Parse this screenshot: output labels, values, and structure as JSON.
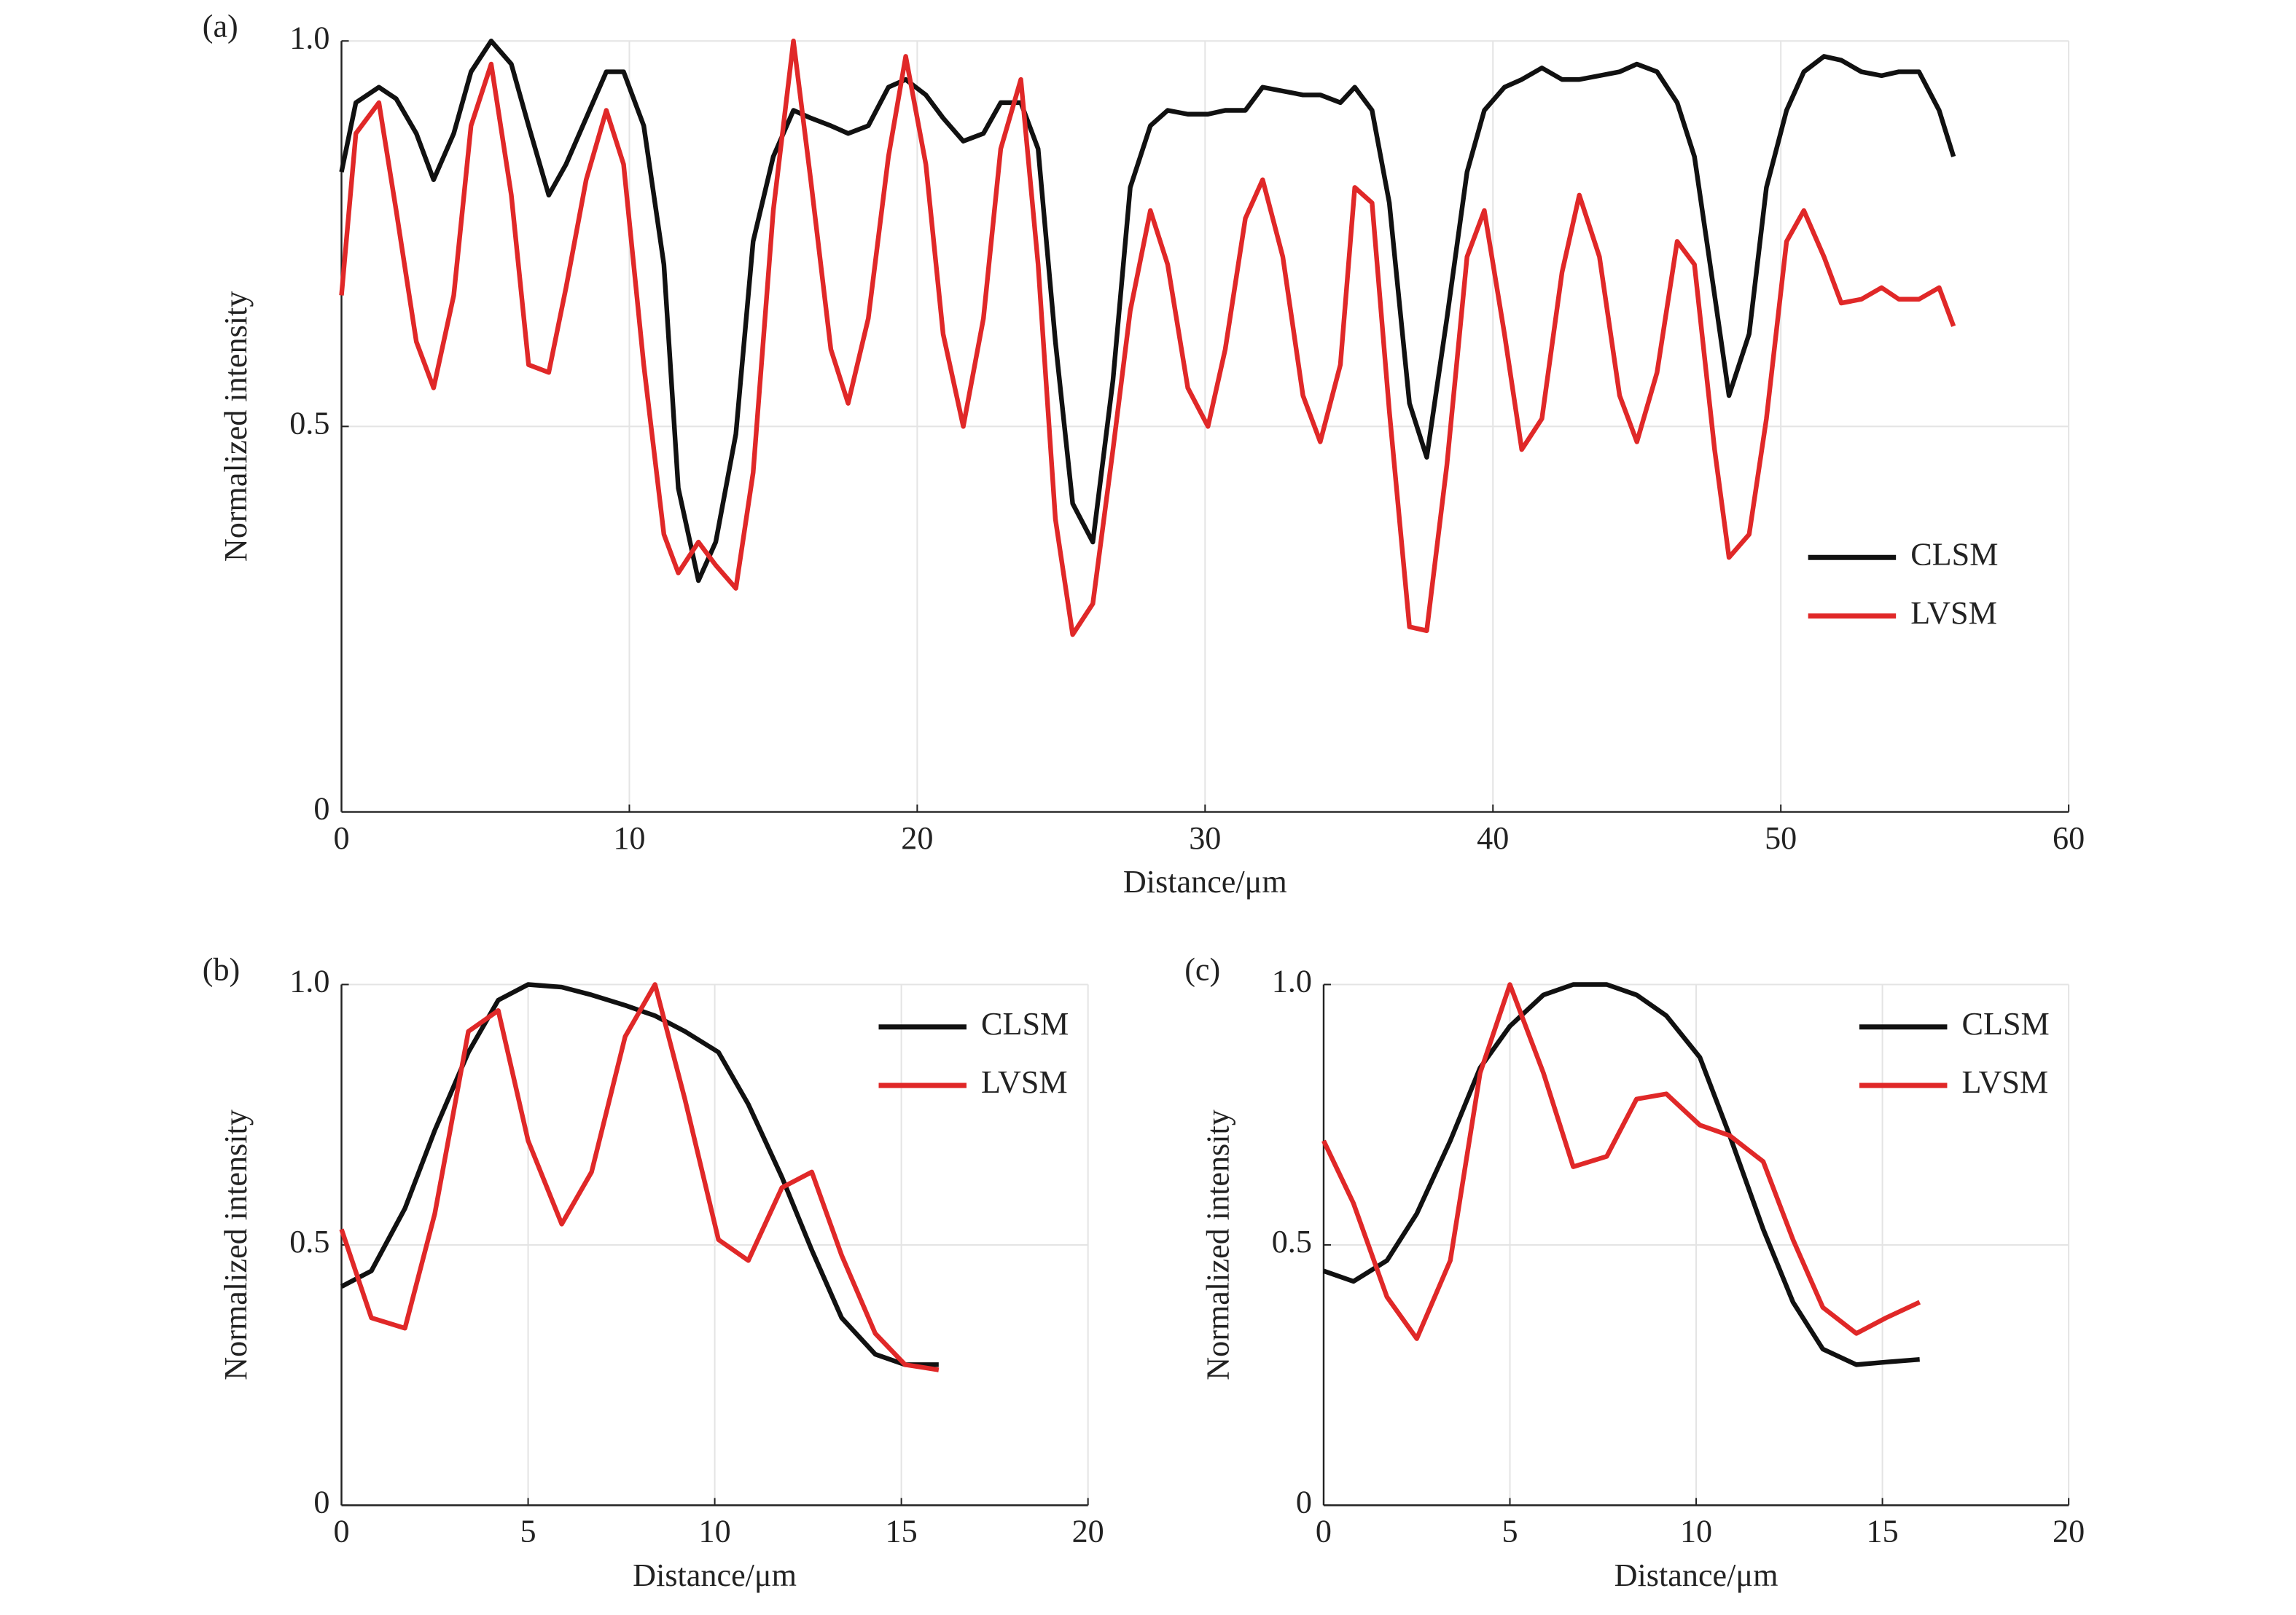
{
  "chart_data": [
    {
      "type": "line",
      "label": "(a)",
      "xlabel": "Distance/μm",
      "ylabel": "Normalized intensity",
      "xlim": [
        0,
        60
      ],
      "xticks": [
        0,
        10,
        20,
        30,
        40,
        50,
        60
      ],
      "ylim": [
        0,
        1
      ],
      "yticks": [
        0,
        0.5,
        {
          "value": 1,
          "label": "1.0"
        }
      ],
      "grid": true,
      "legend": "center right",
      "x": [
        0,
        0.5,
        1.3,
        1.9,
        2.6,
        3.2,
        3.9,
        4.5,
        5.2,
        5.9,
        6.5,
        7.2,
        7.8,
        8.5,
        9.2,
        9.8,
        10.5,
        11.2,
        11.7,
        12.4,
        13.0,
        13.7,
        14.3,
        15.0,
        15.7,
        16.3,
        17.0,
        17.6,
        18.3,
        19.0,
        19.6,
        20.3,
        20.9,
        21.6,
        22.3,
        22.9,
        23.6,
        24.2,
        24.8,
        25.4,
        26.1,
        26.8,
        27.4,
        28.1,
        28.7,
        29.4,
        30.1,
        30.7,
        31.4,
        32.0,
        32.7,
        33.4,
        34.0,
        34.7,
        35.2,
        35.8,
        36.4,
        37.1,
        37.7,
        38.4,
        39.1,
        39.7,
        40.4,
        41.0,
        41.7,
        42.4,
        43.0,
        43.7,
        44.4,
        45.0,
        45.7,
        46.4,
        47.0,
        47.7,
        48.2,
        48.9,
        49.5,
        50.2,
        50.8,
        51.5,
        52.1,
        52.8,
        53.5,
        54.1,
        54.8,
        55.5,
        56.0
      ],
      "series": [
        {
          "name": "CLSM",
          "color": "#111111",
          "values": [
            0.83,
            0.92,
            0.94,
            0.925,
            0.88,
            0.82,
            0.88,
            0.96,
            1.0,
            0.97,
            0.89,
            0.8,
            0.84,
            0.9,
            0.96,
            0.96,
            0.89,
            0.71,
            0.42,
            0.3,
            0.35,
            0.49,
            0.74,
            0.85,
            0.91,
            0.9,
            0.89,
            0.88,
            0.89,
            0.94,
            0.95,
            0.93,
            0.9,
            0.87,
            0.88,
            0.92,
            0.92,
            0.86,
            0.61,
            0.4,
            0.35,
            0.56,
            0.81,
            0.89,
            0.91,
            0.905,
            0.905,
            0.91,
            0.91,
            0.94,
            0.935,
            0.93,
            0.93,
            0.92,
            0.94,
            0.91,
            0.79,
            0.53,
            0.46,
            0.64,
            0.83,
            0.91,
            0.94,
            0.95,
            0.965,
            0.95,
            0.95,
            0.955,
            0.96,
            0.97,
            0.96,
            0.92,
            0.85,
            0.67,
            0.54,
            0.62,
            0.81,
            0.91,
            0.96,
            0.98,
            0.975,
            0.96,
            0.955,
            0.96,
            0.96,
            0.91,
            0.85
          ]
        },
        {
          "name": "LVSM",
          "color": "#e02828",
          "values": [
            0.67,
            0.88,
            0.92,
            0.78,
            0.61,
            0.55,
            0.67,
            0.89,
            0.97,
            0.8,
            0.58,
            0.57,
            0.68,
            0.82,
            0.91,
            0.84,
            0.58,
            0.36,
            0.31,
            0.35,
            0.32,
            0.29,
            0.44,
            0.78,
            1.0,
            0.82,
            0.6,
            0.53,
            0.64,
            0.85,
            0.98,
            0.84,
            0.62,
            0.5,
            0.64,
            0.86,
            0.95,
            0.71,
            0.38,
            0.23,
            0.27,
            0.47,
            0.65,
            0.78,
            0.71,
            0.55,
            0.5,
            0.6,
            0.77,
            0.82,
            0.72,
            0.54,
            0.48,
            0.58,
            0.81,
            0.79,
            0.52,
            0.24,
            0.235,
            0.45,
            0.72,
            0.78,
            0.62,
            0.47,
            0.51,
            0.7,
            0.8,
            0.72,
            0.54,
            0.48,
            0.57,
            0.74,
            0.71,
            0.47,
            0.33,
            0.36,
            0.51,
            0.74,
            0.78,
            0.72,
            0.66,
            0.665,
            0.68,
            0.665,
            0.665,
            0.68,
            0.63
          ]
        }
      ]
    },
    {
      "type": "line",
      "label": "(b)",
      "xlabel": "Distance/μm",
      "ylabel": "Normalized intensity",
      "xlim": [
        0,
        20
      ],
      "xticks": [
        0,
        5,
        10,
        15,
        20
      ],
      "ylim": [
        0,
        1
      ],
      "yticks": [
        0,
        0.5,
        {
          "value": 1,
          "label": "1.0"
        }
      ],
      "grid": true,
      "legend": "upper right",
      "x": [
        0,
        0.8,
        1.7,
        2.5,
        3.4,
        4.2,
        5.0,
        5.9,
        6.7,
        7.6,
        8.4,
        9.2,
        10.1,
        10.9,
        11.8,
        12.6,
        13.4,
        14.3,
        15.1,
        16.0
      ],
      "series": [
        {
          "name": "CLSM",
          "color": "#111111",
          "values": [
            0.42,
            0.45,
            0.57,
            0.72,
            0.87,
            0.97,
            1.0,
            0.995,
            0.98,
            0.96,
            0.94,
            0.91,
            0.87,
            0.77,
            0.63,
            0.49,
            0.36,
            0.29,
            0.27,
            0.27
          ]
        },
        {
          "name": "LVSM",
          "color": "#e02828",
          "values": [
            0.53,
            0.36,
            0.34,
            0.56,
            0.91,
            0.95,
            0.7,
            0.54,
            0.64,
            0.9,
            1.0,
            0.78,
            0.51,
            0.47,
            0.61,
            0.64,
            0.48,
            0.33,
            0.27,
            0.26
          ]
        }
      ]
    },
    {
      "type": "line",
      "label": "(c)",
      "xlabel": "Distance/μm",
      "ylabel": "Normalized intensity",
      "xlim": [
        0,
        20
      ],
      "xticks": [
        0,
        5,
        10,
        15,
        20
      ],
      "ylim": [
        0,
        1
      ],
      "yticks": [
        0,
        0.5,
        {
          "value": 1,
          "label": "1.0"
        }
      ],
      "grid": true,
      "legend": "upper right",
      "x": [
        0,
        0.8,
        1.7,
        2.5,
        3.4,
        4.2,
        5.0,
        5.9,
        6.7,
        7.6,
        8.4,
        9.2,
        10.1,
        10.9,
        11.8,
        12.6,
        13.4,
        14.3,
        15.1,
        16.0
      ],
      "series": [
        {
          "name": "CLSM",
          "color": "#111111",
          "values": [
            0.45,
            0.43,
            0.47,
            0.56,
            0.7,
            0.84,
            0.92,
            0.98,
            1.0,
            1.0,
            0.98,
            0.94,
            0.86,
            0.71,
            0.53,
            0.39,
            0.3,
            0.27,
            0.275,
            0.28
          ]
        },
        {
          "name": "LVSM",
          "color": "#e02828",
          "values": [
            0.7,
            0.58,
            0.4,
            0.32,
            0.47,
            0.83,
            1.0,
            0.83,
            0.65,
            0.67,
            0.78,
            0.79,
            0.73,
            0.71,
            0.66,
            0.51,
            0.38,
            0.33,
            0.36,
            0.39
          ]
        }
      ]
    }
  ]
}
